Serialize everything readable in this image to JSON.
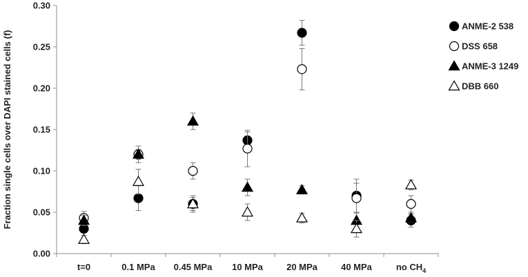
{
  "chart_data": {
    "type": "scatter",
    "ylabel": "Fraction single cells over DAPI stained cells (f)",
    "ylim": [
      0,
      0.3
    ],
    "yticks": [
      "0.00",
      "0.05",
      "0.10",
      "0.15",
      "0.20",
      "0.25",
      "0.30"
    ],
    "categories": [
      "t=0",
      "0.1 MPa",
      "0.45 MPa",
      "10 MPa",
      "20 MPa",
      "40 MPa",
      "no CH"
    ],
    "category_subscripts": [
      "",
      "",
      "",
      "",
      "",
      "",
      "4"
    ],
    "grid": false,
    "legend_position": "right",
    "series": [
      {
        "name": "ANME-2 538",
        "marker": "circle-filled",
        "values": [
          0.03,
          0.067,
          0.06,
          0.137,
          0.267,
          0.07,
          0.04
        ],
        "errors": [
          0.005,
          0.015,
          0.008,
          0.01,
          0.015,
          0.02,
          0.008
        ]
      },
      {
        "name": "DSS 658",
        "marker": "circle-open",
        "values": [
          0.043,
          0.12,
          0.1,
          0.127,
          0.223,
          0.067,
          0.06
        ],
        "errors": [
          0.008,
          0.01,
          0.01,
          0.022,
          0.025,
          0.018,
          0.01
        ]
      },
      {
        "name": "ANME-3 1249",
        "marker": "triangle-filled",
        "values": [
          0.04,
          0.12,
          0.16,
          0.08,
          0.077,
          0.04,
          0.043
        ],
        "errors": [
          0.006,
          0.006,
          0.01,
          0.01,
          0.005,
          0.01,
          0.005
        ]
      },
      {
        "name": "DBB 660",
        "marker": "triangle-open",
        "values": [
          0.017,
          0.087,
          0.06,
          0.05,
          0.043,
          0.03,
          0.083
        ],
        "errors": [
          0.005,
          0.015,
          0.01,
          0.01,
          0.006,
          0.01,
          0.006
        ]
      }
    ]
  }
}
